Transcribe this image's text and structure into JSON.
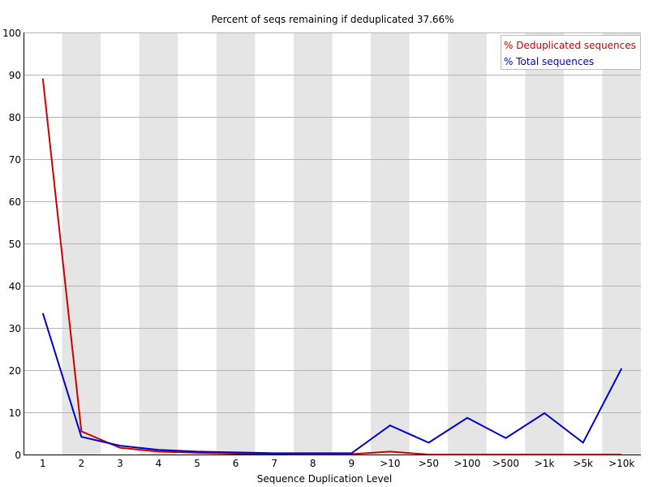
{
  "chart_data": {
    "type": "line",
    "title": "Percent of seqs remaining if deduplicated 37.66%",
    "xlabel": "Sequence Duplication Level",
    "ylabel": "",
    "ylim": [
      0,
      100
    ],
    "yticks": [
      0,
      10,
      20,
      30,
      40,
      50,
      60,
      70,
      80,
      90,
      100
    ],
    "categories": [
      "1",
      "2",
      "3",
      "4",
      "5",
      "6",
      "7",
      "8",
      "9",
      ">10",
      ">50",
      ">100",
      ">500",
      ">1k",
      ">5k",
      ">10k"
    ],
    "grid": true,
    "alternating_column_bands": true,
    "legend_position": "top-right",
    "series": [
      {
        "name": "% Deduplicated sequences",
        "color": "#cc0000",
        "values": [
          89.1,
          5.5,
          1.6,
          0.7,
          0.4,
          0.2,
          0.2,
          0.1,
          0.1,
          0.7,
          0.0,
          0.0,
          0.0,
          0.0,
          0.0,
          0.0
        ]
      },
      {
        "name": "% Total sequences",
        "color": "#0000cc",
        "values": [
          33.5,
          4.2,
          2.1,
          1.1,
          0.7,
          0.5,
          0.3,
          0.3,
          0.3,
          6.9,
          2.8,
          8.7,
          3.9,
          9.8,
          2.8,
          20.4
        ]
      }
    ]
  }
}
